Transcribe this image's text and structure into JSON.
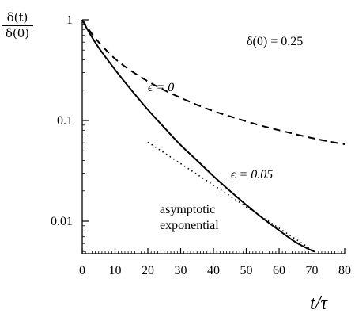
{
  "chart_data": {
    "type": "line",
    "title": "",
    "xlabel": "t/τ",
    "ylabel_numerator": "δ(t)",
    "ylabel_denominator": "δ(0)",
    "xlim": [
      0,
      80
    ],
    "ylim": [
      0.005,
      1
    ],
    "y_scale": "log",
    "grid": false,
    "x_ticks": [
      0,
      10,
      20,
      30,
      40,
      50,
      60,
      70,
      80
    ],
    "x_tick_labels": [
      "0",
      "10",
      "20",
      "30",
      "40",
      "50",
      "60",
      "70",
      "80"
    ],
    "y_ticks": [
      0.01,
      0.1,
      1
    ],
    "y_tick_labels": [
      "0.01",
      "0.1",
      "1"
    ],
    "annotations": {
      "initial": "δ(0) = 0.25",
      "eps0": "ϵ = 0",
      "eps005": "ϵ = 0.05",
      "asymptotic_line1": "asymptotic",
      "asymptotic_line2": "exponential"
    },
    "series": [
      {
        "style": "dashed",
        "label": "ϵ = 0",
        "x": [
          0,
          2,
          5,
          10,
          15,
          20,
          25,
          30,
          35,
          40,
          45,
          50,
          55,
          60,
          65,
          70,
          75,
          80
        ],
        "y": [
          1,
          0.8,
          0.6,
          0.41,
          0.31,
          0.245,
          0.2,
          0.168,
          0.143,
          0.124,
          0.11,
          0.098,
          0.088,
          0.08,
          0.073,
          0.067,
          0.062,
          0.058
        ]
      },
      {
        "style": "solid",
        "label": "ϵ = 0.05",
        "x": [
          0,
          2,
          5,
          10,
          15,
          20,
          25,
          30,
          35,
          40,
          45,
          50,
          55,
          60,
          65,
          70,
          71
        ],
        "y": [
          1,
          0.76,
          0.53,
          0.32,
          0.2,
          0.128,
          0.085,
          0.057,
          0.04,
          0.028,
          0.02,
          0.0145,
          0.0107,
          0.0081,
          0.0062,
          0.0051,
          0.005
        ]
      },
      {
        "style": "dotted",
        "label": "asymptotic exponential",
        "x": [
          20,
          70
        ],
        "y": [
          0.061,
          0.0052
        ]
      }
    ]
  }
}
